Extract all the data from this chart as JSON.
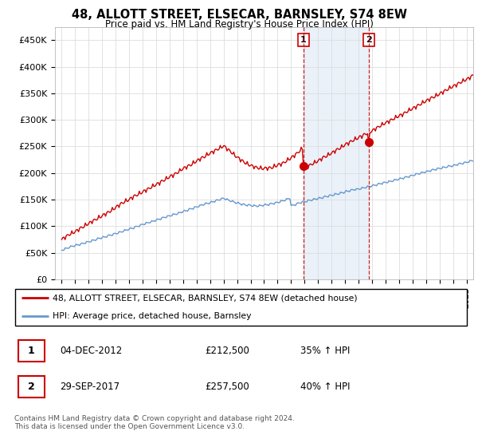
{
  "title": "48, ALLOTT STREET, ELSECAR, BARNSLEY, S74 8EW",
  "subtitle": "Price paid vs. HM Land Registry's House Price Index (HPI)",
  "legend_line1": "48, ALLOTT STREET, ELSECAR, BARNSLEY, S74 8EW (detached house)",
  "legend_line2": "HPI: Average price, detached house, Barnsley",
  "transaction1_date": "04-DEC-2012",
  "transaction1_price": "£212,500",
  "transaction1_hpi": "35% ↑ HPI",
  "transaction2_date": "29-SEP-2017",
  "transaction2_price": "£257,500",
  "transaction2_hpi": "40% ↑ HPI",
  "footer": "Contains HM Land Registry data © Crown copyright and database right 2024.\nThis data is licensed under the Open Government Licence v3.0.",
  "red_color": "#cc0000",
  "blue_color": "#6699cc",
  "shade_color": "#dce9f5",
  "marker1_x": 2012.92,
  "marker2_x": 2017.75,
  "marker1_y": 212500,
  "marker2_y": 257500,
  "vline1_x": 2012.92,
  "vline2_x": 2017.75,
  "ylim": [
    0,
    475000
  ],
  "xlim": [
    1994.5,
    2025.5
  ]
}
